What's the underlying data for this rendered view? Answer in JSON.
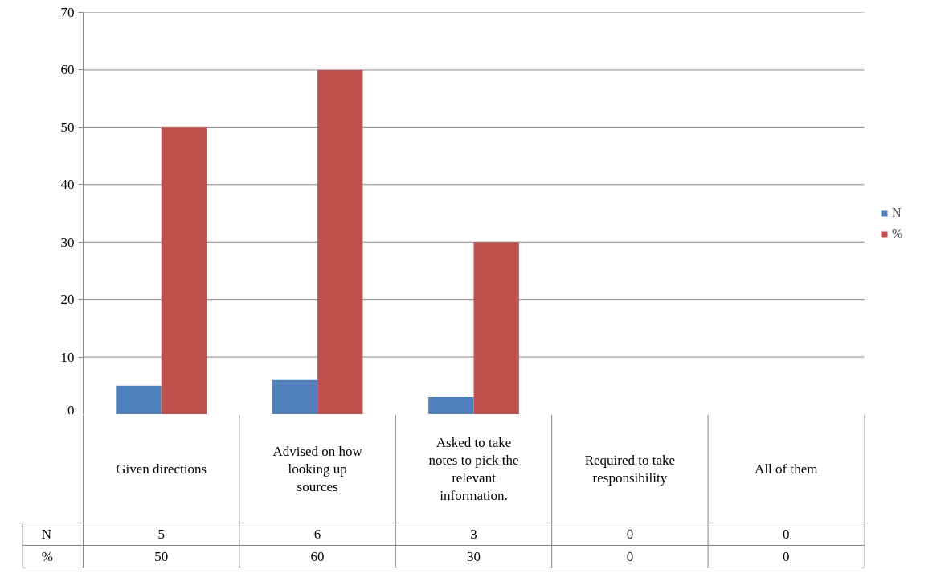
{
  "chart_data": {
    "type": "bar",
    "categories": [
      "Given directions",
      "Advised on how looking up sources",
      "Asked to take notes to pick the relevant information.",
      "Required to take responsibility",
      "All of them"
    ],
    "series": [
      {
        "name": "N",
        "color": "#4f81bd",
        "values": [
          5,
          6,
          3,
          0,
          0
        ]
      },
      {
        "name": "%",
        "color": "#c0504d",
        "values": [
          50,
          60,
          30,
          0,
          0
        ]
      }
    ],
    "ylim": [
      0,
      70
    ],
    "yticks": [
      0,
      10,
      20,
      30,
      40,
      50,
      60,
      70
    ],
    "grid": "y",
    "legend": "right",
    "data_labels": true
  }
}
